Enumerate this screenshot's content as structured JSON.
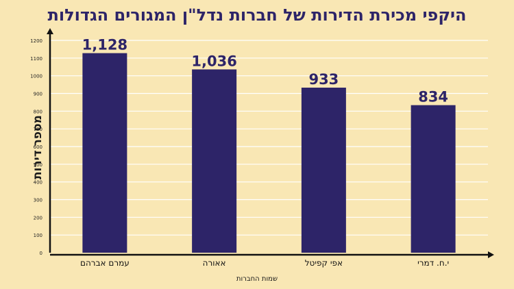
{
  "chart_data": {
    "type": "bar",
    "title": "היקפי מכירת הדירות של חברות נדל\"ן המגורים הגדולות",
    "xlabel": "שמות החברות",
    "ylabel": "מספר דירות",
    "categories": [
      "עמרם אברהם",
      "אאורה",
      "אפי קפיטל",
      "י.ח. דמרי"
    ],
    "values": [
      1128,
      1036,
      933,
      834
    ],
    "value_labels": [
      "1,128",
      "1,036",
      "933",
      "834"
    ],
    "ylim": [
      0,
      1200
    ],
    "yticks": [
      "0",
      "100",
      "200",
      "300",
      "400",
      "500",
      "600",
      "700",
      "800",
      "900",
      "1000",
      "1100",
      "1200"
    ],
    "grid": true,
    "colors": {
      "bar": "#2d2468",
      "grid": "#ffffff",
      "axis": "#111111",
      "title": "#2d2468"
    }
  }
}
